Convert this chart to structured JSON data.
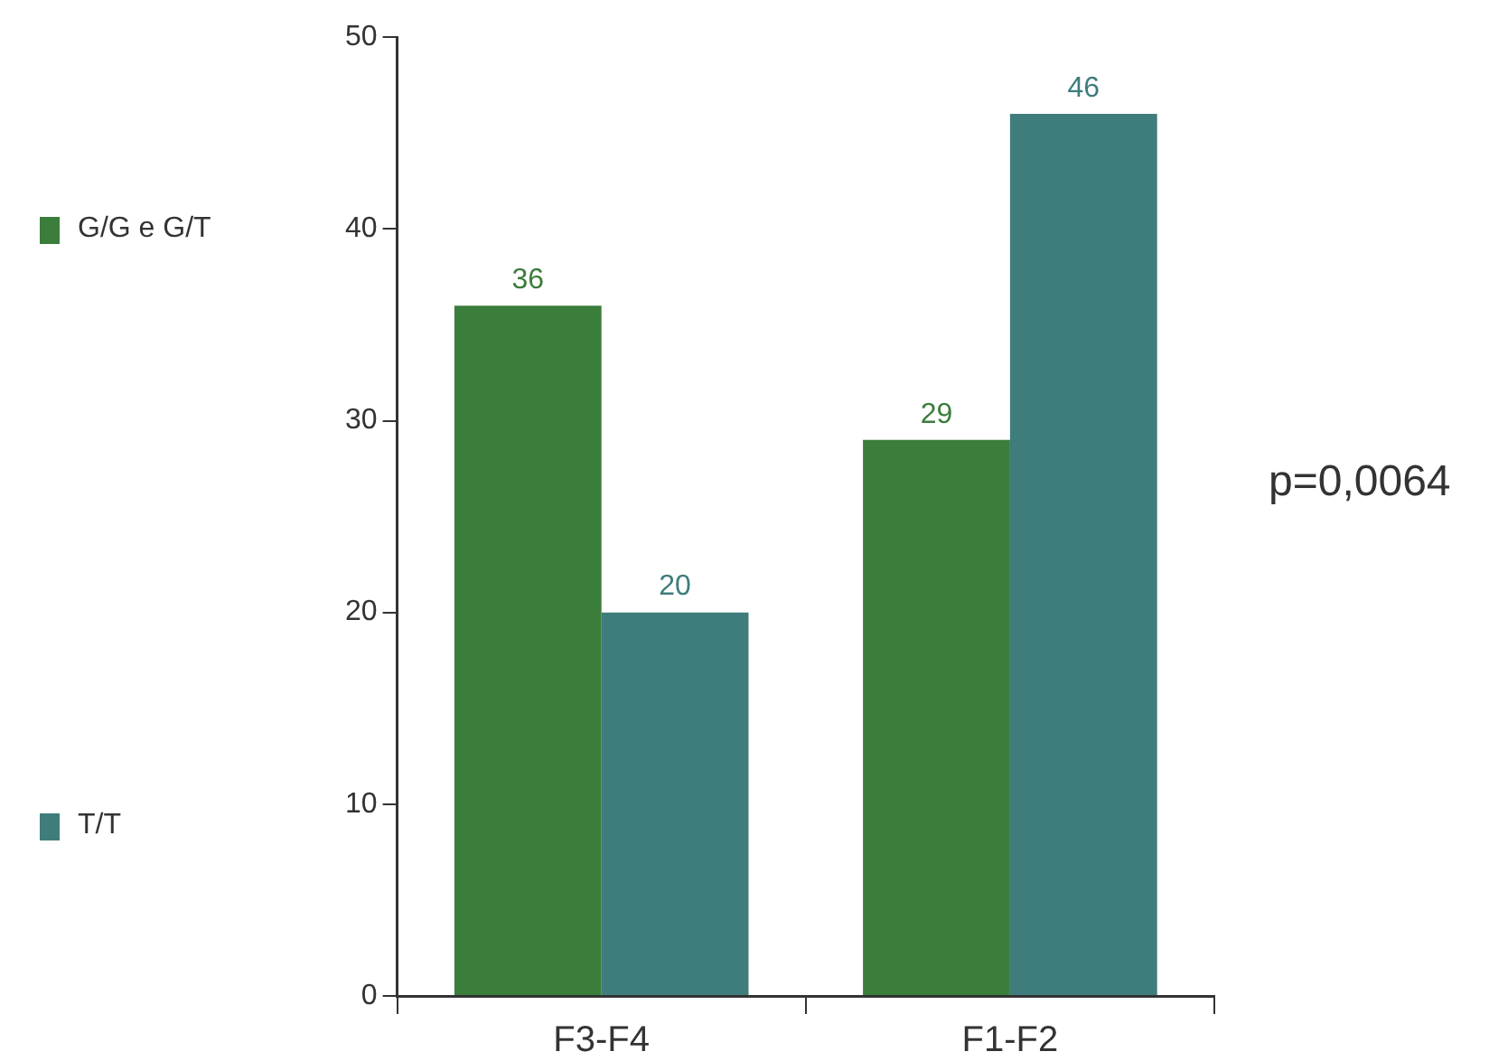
{
  "chart_data": {
    "type": "bar",
    "categories": [
      "F3-F4",
      "F1-F2"
    ],
    "series": [
      {
        "name": "G/G e G/T",
        "color": "#3b7d3b",
        "values": [
          36,
          29
        ]
      },
      {
        "name": "T/T",
        "color": "#3e7d7b",
        "values": [
          20,
          46
        ]
      }
    ],
    "ylim": [
      0,
      50
    ],
    "yticks": [
      0,
      10,
      20,
      30,
      40,
      50
    ],
    "grid": false,
    "legend": "left",
    "data_labels": true,
    "annotations": [
      "p=0,0064"
    ]
  }
}
